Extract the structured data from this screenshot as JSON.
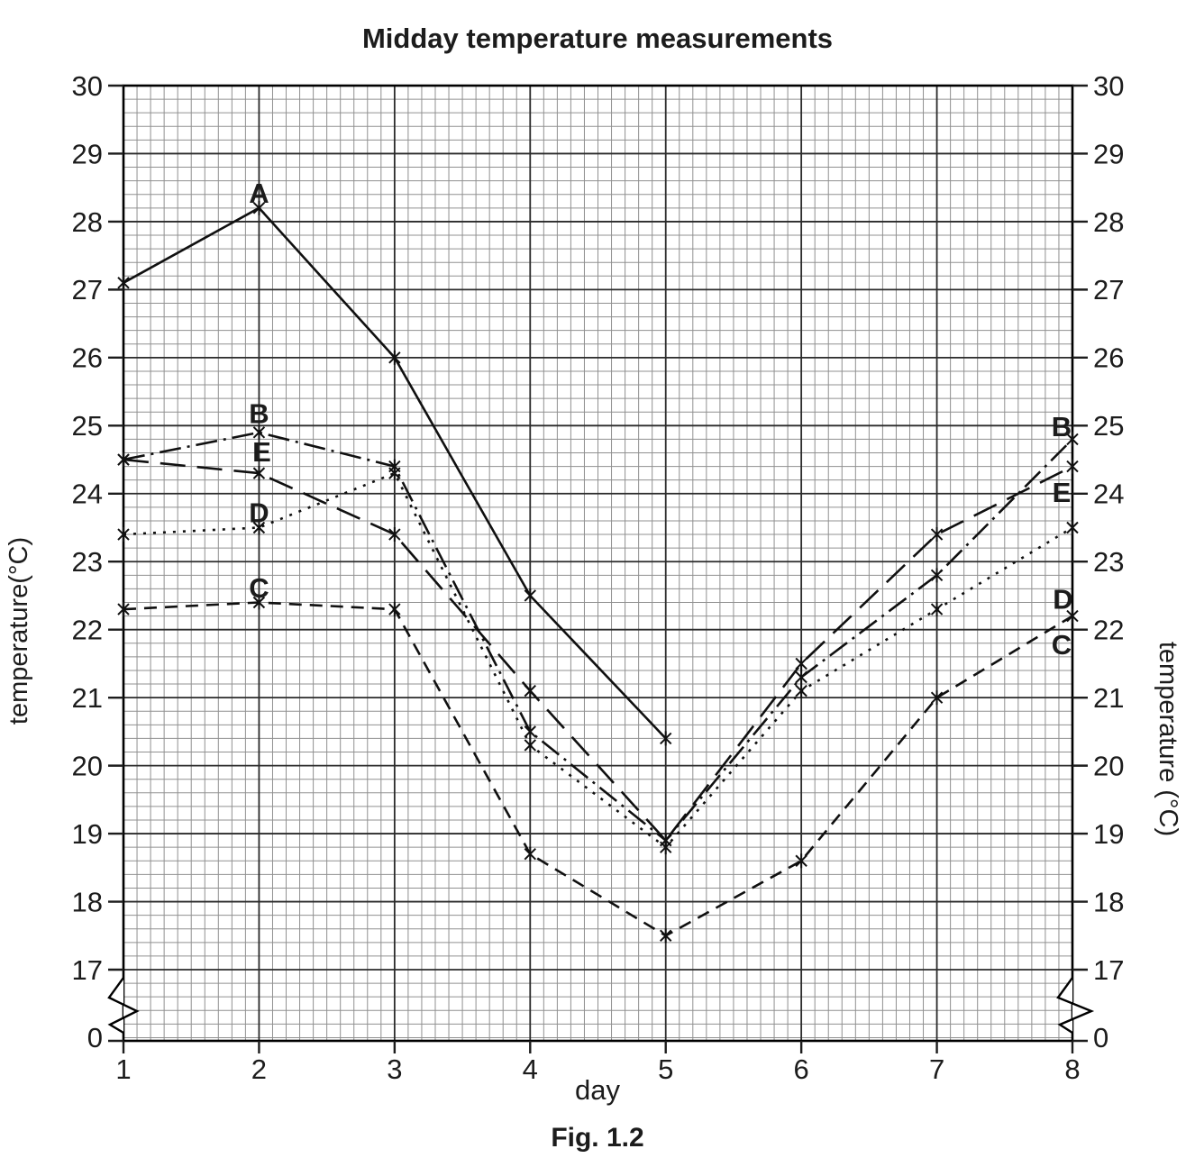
{
  "page": {
    "title": "Midday temperature measurements",
    "caption": "Fig. 1.2"
  },
  "chart_data": {
    "type": "line",
    "title": "Midday temperature measurements",
    "xlabel": "day",
    "ylabel_left": "temperature(°C)",
    "ylabel_right": "temperature (°C)",
    "x_ticks": [
      1,
      2,
      3,
      4,
      5,
      6,
      7,
      8
    ],
    "y_ticks": [
      30,
      29,
      28,
      27,
      26,
      25,
      24,
      23,
      22,
      21,
      20,
      19,
      18,
      17
    ],
    "y_axis_break": true,
    "y_axis_break_label": "0",
    "xlim": [
      1,
      8
    ],
    "ylim_shown": [
      17,
      30
    ],
    "grid": "graph-paper: minor 0.1 day x 0.2 degC, major 1 day x 1 degC",
    "legend_position": "inline series letters near day 2 and at right edge near day 8",
    "marker": "asterisk",
    "series": [
      {
        "name": "A",
        "line_style": "solid",
        "points": [
          [
            1,
            27.1
          ],
          [
            2,
            28.2
          ],
          [
            3,
            26.0
          ],
          [
            4,
            22.5
          ],
          [
            5,
            20.4
          ]
        ]
      },
      {
        "name": "B",
        "line_style": "dash-dot",
        "points": [
          [
            1,
            24.5
          ],
          [
            2,
            24.9
          ],
          [
            3,
            24.4
          ],
          [
            4,
            20.5
          ],
          [
            5,
            18.9
          ],
          [
            6,
            21.3
          ],
          [
            7,
            22.8
          ],
          [
            8,
            24.8
          ]
        ]
      },
      {
        "name": "C",
        "line_style": "dashed",
        "points": [
          [
            1,
            22.3
          ],
          [
            2,
            22.4
          ],
          [
            3,
            22.3
          ],
          [
            4,
            18.7
          ],
          [
            5,
            17.5
          ],
          [
            6,
            18.6
          ],
          [
            7,
            21.0
          ],
          [
            8,
            22.2
          ]
        ]
      },
      {
        "name": "D",
        "line_style": "dotted",
        "points": [
          [
            1,
            23.4
          ],
          [
            2,
            23.5
          ],
          [
            3,
            24.3
          ],
          [
            4,
            20.3
          ],
          [
            5,
            18.8
          ],
          [
            6,
            21.1
          ],
          [
            7,
            22.3
          ],
          [
            8,
            23.5
          ]
        ]
      },
      {
        "name": "E",
        "line_style": "long-dash",
        "points": [
          [
            1,
            24.5
          ],
          [
            2,
            24.3
          ],
          [
            3,
            23.4
          ],
          [
            4,
            21.1
          ],
          [
            5,
            18.9
          ],
          [
            6,
            21.5
          ],
          [
            7,
            23.4
          ],
          [
            8,
            24.4
          ]
        ]
      }
    ],
    "annotations": [
      {
        "text": "A",
        "day": 2.0,
        "temp": 28.42
      },
      {
        "text": "B",
        "day": 2.0,
        "temp": 25.18
      },
      {
        "text": "E",
        "day": 2.02,
        "temp": 24.62
      },
      {
        "text": "D",
        "day": 2.0,
        "temp": 23.72
      },
      {
        "text": "C",
        "day": 2.0,
        "temp": 22.62
      },
      {
        "text": "B",
        "day": 7.92,
        "temp": 24.99
      },
      {
        "text": "E",
        "day": 7.92,
        "temp": 24.02
      },
      {
        "text": "D",
        "day": 7.93,
        "temp": 22.45
      },
      {
        "text": "C",
        "day": 7.92,
        "temp": 21.78
      }
    ]
  }
}
